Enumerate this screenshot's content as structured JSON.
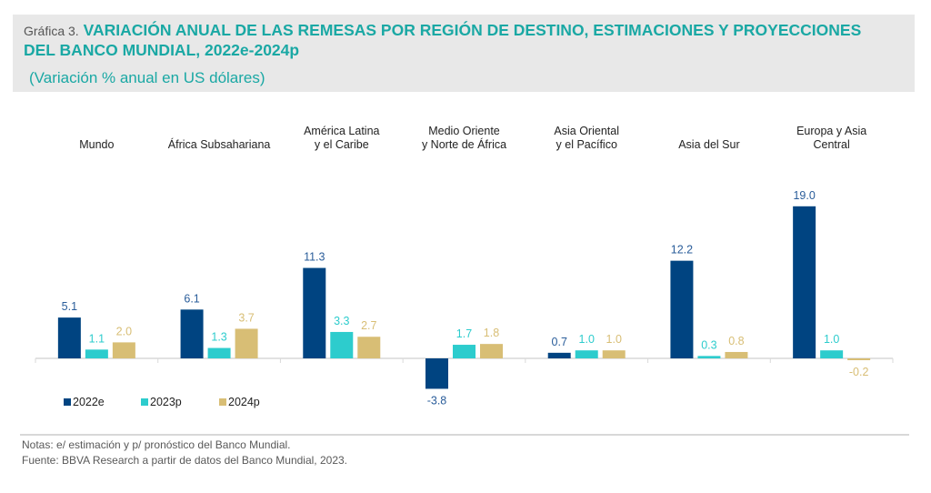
{
  "header": {
    "prefix": "Gráfica 3.",
    "title": "VARIACIÓN ANUAL DE LAS REMESAS POR REGIÓN DE DESTINO, ESTIMACIONES Y PROYECCIONES DEL BANCO MUNDIAL, 2022e-2024p",
    "subtitle": "(Variación % anual en US dólares)"
  },
  "footer": {
    "notes": "Notas: e/ estimación y p/ pronóstico del Banco Mundial.",
    "source": "Fuente: BBVA Research a partir de datos del Banco Mundial, 2023."
  },
  "chart_data": {
    "type": "bar",
    "title": "Variación anual de las remesas por región de destino, estimaciones y proyecciones del Banco Mundial, 2022e-2024p",
    "ylabel": "Variación % anual en US dólares",
    "xlabel": "",
    "categories": [
      [
        "Mundo"
      ],
      [
        "África Subsahariana"
      ],
      [
        "América Latina",
        "y el Caribe"
      ],
      [
        "Medio Oriente",
        "y Norte de África"
      ],
      [
        "Asia Oriental",
        "y el Pacífico"
      ],
      [
        "Asia del Sur"
      ],
      [
        "Europa y Asia",
        "Central"
      ]
    ],
    "series": [
      {
        "name": "2022e",
        "color": "#004481",
        "label_color": "#2a5d9a",
        "values": [
          5.1,
          6.1,
          11.3,
          -3.8,
          0.7,
          12.2,
          19.0
        ]
      },
      {
        "name": "2023p",
        "color": "#2dcccd",
        "label_color": "#2dcccd",
        "values": [
          1.1,
          1.3,
          3.3,
          1.7,
          1.0,
          0.3,
          1.0
        ]
      },
      {
        "name": "2024p",
        "color": "#d8be75",
        "label_color": "#d8be75",
        "values": [
          2.0,
          3.7,
          2.7,
          1.8,
          1.0,
          0.8,
          -0.2
        ]
      }
    ],
    "ylim": [
      -4,
      20
    ],
    "grid": false,
    "data_labels": true,
    "legend": "bottom-left"
  }
}
